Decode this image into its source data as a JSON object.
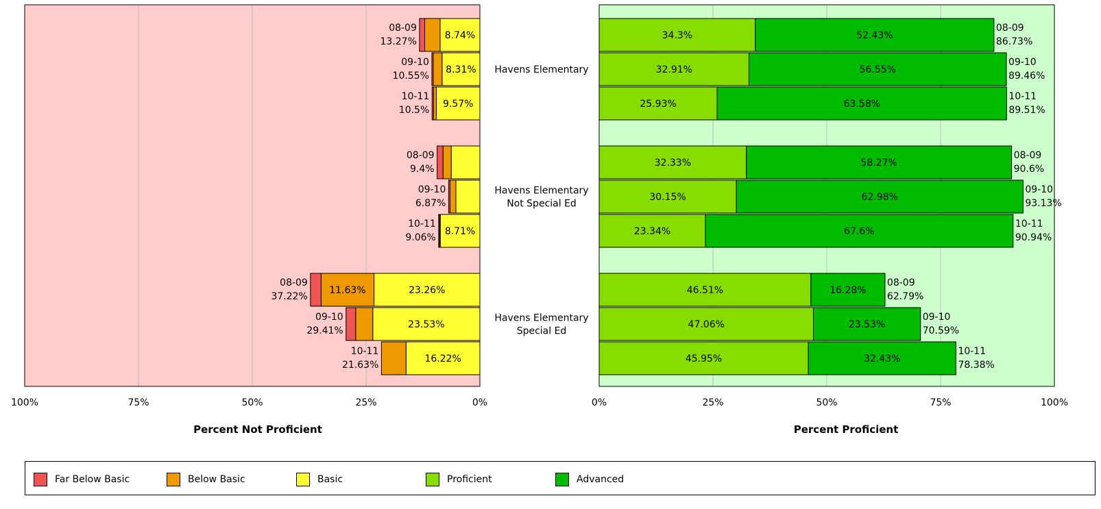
{
  "chart_data": [
    {
      "type": "bar",
      "orientation": "horizontal-stacked",
      "xlabel": "Percent Not Proficient",
      "xlim": [
        100,
        0
      ],
      "x_ticks": [
        "100%",
        "75%",
        "50%",
        "25%",
        "0%"
      ],
      "grid": true,
      "groups": [
        {
          "bars": [
            {
              "year": "08-09",
              "total": "13.27%",
              "far_below_basic": 1.15,
              "below_basic": 3.38,
              "basic": 8.74,
              "basic_label": "8.74%"
            },
            {
              "year": "09-10",
              "total": "10.55%",
              "far_below_basic": 0.3,
              "below_basic": 1.94,
              "basic": 8.31,
              "basic_label": "8.31%"
            },
            {
              "year": "10-11",
              "total": "10.5%",
              "far_below_basic": 0.3,
              "below_basic": 0.63,
              "basic": 9.57,
              "basic_label": "9.57%"
            }
          ]
        },
        {
          "bars": [
            {
              "year": "08-09",
              "total": "9.4%",
              "far_below_basic": 1.3,
              "below_basic": 1.8,
              "basic": 6.3,
              "basic_label": ""
            },
            {
              "year": "09-10",
              "total": "6.87%",
              "far_below_basic": 0.3,
              "below_basic": 1.3,
              "basic": 5.27,
              "basic_label": ""
            },
            {
              "year": "10-11",
              "total": "9.06%",
              "far_below_basic": 0.2,
              "below_basic": 0.15,
              "basic": 8.71,
              "basic_label": "8.71%"
            }
          ]
        },
        {
          "bars": [
            {
              "year": "08-09",
              "total": "37.22%",
              "far_below_basic": 2.33,
              "below_basic": 11.63,
              "below_basic_label": "11.63%",
              "basic": 23.26,
              "basic_label": "23.26%"
            },
            {
              "year": "09-10",
              "total": "29.41%",
              "far_below_basic": 2.12,
              "below_basic": 3.76,
              "below_basic_label": "",
              "basic": 23.53,
              "basic_label": "23.53%"
            },
            {
              "year": "10-11",
              "total": "21.63%",
              "far_below_basic": 0,
              "below_basic": 5.41,
              "below_basic_label": "",
              "basic": 16.22,
              "basic_label": "16.22%"
            }
          ]
        }
      ]
    },
    {
      "type": "bar",
      "orientation": "horizontal-stacked",
      "xlabel": "Percent Proficient",
      "xlim": [
        0,
        100
      ],
      "x_ticks": [
        "0%",
        "25%",
        "50%",
        "75%",
        "100%"
      ],
      "grid": true,
      "groups": [
        {
          "name_lines": [
            "Havens Elementary"
          ],
          "bars": [
            {
              "year": "08-09",
              "total": "86.73%",
              "proficient": 34.3,
              "proficient_label": "34.3%",
              "advanced": 52.43,
              "advanced_label": "52.43%"
            },
            {
              "year": "09-10",
              "total": "89.46%",
              "proficient": 32.91,
              "proficient_label": "32.91%",
              "advanced": 56.55,
              "advanced_label": "56.55%"
            },
            {
              "year": "10-11",
              "total": "89.51%",
              "proficient": 25.93,
              "proficient_label": "25.93%",
              "advanced": 63.58,
              "advanced_label": "63.58%"
            }
          ]
        },
        {
          "name_lines": [
            "Havens Elementary",
            "Not Special Ed"
          ],
          "bars": [
            {
              "year": "08-09",
              "total": "90.6%",
              "proficient": 32.33,
              "proficient_label": "32.33%",
              "advanced": 58.27,
              "advanced_label": "58.27%"
            },
            {
              "year": "09-10",
              "total": "93.13%",
              "proficient": 30.15,
              "proficient_label": "30.15%",
              "advanced": 62.98,
              "advanced_label": "62.98%"
            },
            {
              "year": "10-11",
              "total": "90.94%",
              "proficient": 23.34,
              "proficient_label": "23.34%",
              "advanced": 67.6,
              "advanced_label": "67.6%"
            }
          ]
        },
        {
          "name_lines": [
            "Havens Elementary",
            "Special Ed"
          ],
          "bars": [
            {
              "year": "08-09",
              "total": "62.79%",
              "proficient": 46.51,
              "proficient_label": "46.51%",
              "advanced": 16.28,
              "advanced_label": "16.28%"
            },
            {
              "year": "09-10",
              "total": "70.59%",
              "proficient": 47.06,
              "proficient_label": "47.06%",
              "advanced": 23.53,
              "advanced_label": "23.53%"
            },
            {
              "year": "10-11",
              "total": "78.38%",
              "proficient": 45.95,
              "proficient_label": "45.95%",
              "advanced": 32.43,
              "advanced_label": "32.43%"
            }
          ]
        }
      ]
    }
  ],
  "colors": {
    "left_bg": "#ffcccc",
    "right_bg": "#ccffcc",
    "grid": "#bbbbbb",
    "far_below_basic": "#ee5555",
    "below_basic": "#ee9900",
    "basic": "#ffff33",
    "proficient": "#88dd00",
    "advanced": "#00bb00"
  },
  "legend": [
    {
      "label": "Far Below Basic",
      "color": "#ee5555"
    },
    {
      "label": "Below Basic",
      "color": "#ee9900"
    },
    {
      "label": "Basic",
      "color": "#ffff33"
    },
    {
      "label": "Proficient",
      "color": "#88dd00"
    },
    {
      "label": "Advanced",
      "color": "#00bb00"
    }
  ]
}
